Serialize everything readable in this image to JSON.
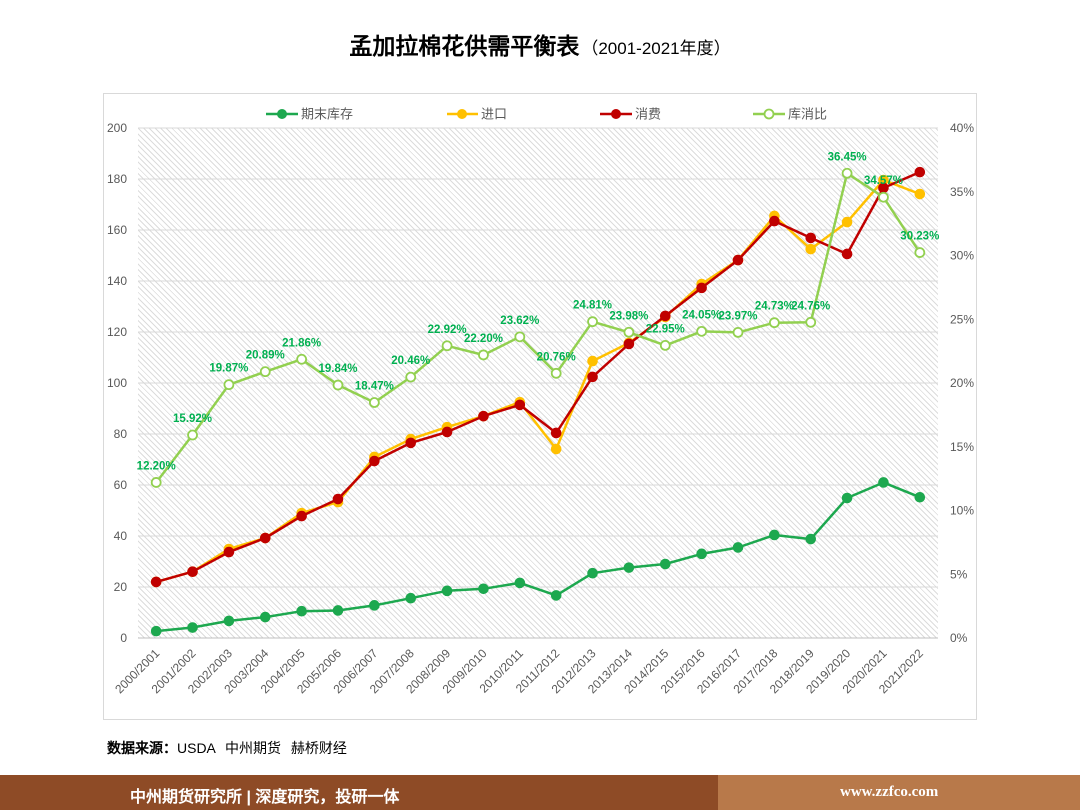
{
  "chart_data": {
    "type": "line",
    "title": "孟加拉棉花供需平衡表",
    "subtitle": "（2001-2021年度）",
    "categories": [
      "2000/2001",
      "2001/2002",
      "2002/2003",
      "2003/2004",
      "2004/2005",
      "2005/2006",
      "2006/2007",
      "2007/2008",
      "2008/2009",
      "2009/2010",
      "2010/2011",
      "2011/2012",
      "2012/2013",
      "2013/2014",
      "2014/2015",
      "2015/2016",
      "2016/2017",
      "2017/2018",
      "2018/2019",
      "2019/2020",
      "2020/2021",
      "2021/2022"
    ],
    "y_left": {
      "range": [
        0,
        200
      ],
      "ticks": [
        "0",
        "20",
        "40",
        "60",
        "80",
        "100",
        "120",
        "140",
        "160",
        "180",
        "200"
      ]
    },
    "y_right": {
      "range": [
        0,
        40
      ],
      "ticks": [
        "0%",
        "5%",
        "10%",
        "15%",
        "20%",
        "25%",
        "30%",
        "35%",
        "40%"
      ]
    },
    "grid": true,
    "legend": "top",
    "series": [
      {
        "name": "期末库存",
        "axis": "left",
        "color": "#1da84f",
        "marker": "filled",
        "values": [
          2.7,
          4.1,
          6.7,
          8.2,
          10.5,
          10.8,
          12.8,
          15.6,
          18.5,
          19.3,
          21.6,
          16.7,
          25.4,
          27.6,
          29.0,
          33.0,
          35.5,
          40.4,
          38.8,
          54.9,
          61.0,
          55.2
        ]
      },
      {
        "name": "进口",
        "axis": "left",
        "color": "#ffc000",
        "marker": "filled",
        "values": [
          22.0,
          26.0,
          34.9,
          39.2,
          49.0,
          53.3,
          71.0,
          78.0,
          82.7,
          87.0,
          92.5,
          74.1,
          108.6,
          115.7,
          125.9,
          138.8,
          148.2,
          165.5,
          152.5,
          163.1,
          179.6,
          174.1
        ]
      },
      {
        "name": "消费",
        "axis": "left",
        "color": "#c00000",
        "marker": "filled",
        "values": [
          22.0,
          26.0,
          33.7,
          39.2,
          47.8,
          54.5,
          69.4,
          76.5,
          80.8,
          87.0,
          91.4,
          80.4,
          102.4,
          115.3,
          126.3,
          137.3,
          148.2,
          163.5,
          156.9,
          150.6,
          176.5,
          182.7
        ]
      },
      {
        "name": "库消比",
        "axis": "right",
        "color": "#92d050",
        "marker": "hollow",
        "label_color": "#00b050",
        "values": [
          12.2,
          15.92,
          19.87,
          20.89,
          21.86,
          19.84,
          18.47,
          20.46,
          22.92,
          22.2,
          23.62,
          20.76,
          24.81,
          23.98,
          22.95,
          24.05,
          23.97,
          24.73,
          24.76,
          36.45,
          34.57,
          30.23
        ],
        "labels": [
          "12.20%",
          "15.92%",
          "19.87%",
          "20.89%",
          "21.86%",
          "19.84%",
          "18.47%",
          "20.46%",
          "22.92%",
          "22.20%",
          "23.62%",
          "20.76%",
          "24.81%",
          "23.98%",
          "22.95%",
          "24.05%",
          "23.97%",
          "24.73%",
          "24.76%",
          "36.45%",
          "34.57%",
          "30.23%"
        ]
      }
    ]
  },
  "source": {
    "label": "数据来源：",
    "text": "USDA 中州期货 赫桥财经"
  },
  "footer": {
    "left": "中州期货研究所 | 深度研究，投研一体",
    "right": "www.zzfco.com",
    "left_color": "#8e4b26",
    "right_color": "#b8794a"
  }
}
